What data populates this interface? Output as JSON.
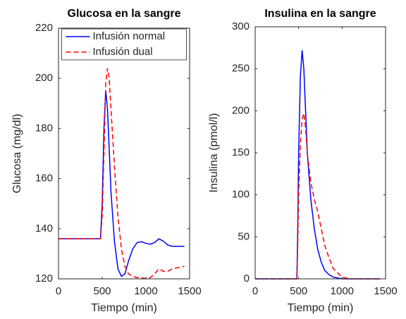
{
  "chart_data": [
    {
      "type": "line",
      "title": "Glucosa en la sangre",
      "xlabel": "Tiempo (min)",
      "ylabel": "Glucosa (mg/dl)",
      "x": [
        0,
        480,
        500,
        520,
        540,
        560,
        580,
        600,
        640,
        680,
        720,
        760,
        800,
        850,
        900,
        950,
        1000,
        1050,
        1100,
        1150,
        1200,
        1250,
        1300,
        1440
      ],
      "series": [
        {
          "name": "Infusión normal",
          "color": "#0000ff",
          "dash": false,
          "values": [
            136,
            136,
            150,
            180,
            195,
            188,
            172,
            155,
            135,
            124,
            121,
            122,
            127,
            132,
            134.5,
            134.8,
            134.2,
            133.8,
            134.5,
            136,
            135,
            133.5,
            133,
            133
          ]
        },
        {
          "name": "Infusión dual",
          "color": "#ff0000",
          "dash": true,
          "values": [
            136,
            136,
            145,
            170,
            198,
            204,
            200,
            188,
            165,
            145,
            132,
            125,
            122,
            121,
            120.5,
            120.5,
            120,
            120.5,
            122,
            124,
            123,
            123,
            124,
            125
          ]
        }
      ],
      "xlim": [
        0,
        1500
      ],
      "xticks": [
        0,
        500,
        1000,
        1500
      ],
      "ylim": [
        120,
        220
      ],
      "yticks": [
        120,
        140,
        160,
        180,
        200,
        220
      ],
      "legend": "north"
    },
    {
      "type": "line",
      "title": "Insulina en la sangre",
      "xlabel": "Tiempo (min)",
      "ylabel": "Insulina (pmol/l)",
      "x": [
        0,
        480,
        490,
        500,
        520,
        540,
        560,
        580,
        600,
        640,
        680,
        720,
        760,
        800,
        850,
        900,
        1000,
        1100,
        1440
      ],
      "series": [
        {
          "color": "#0000ff",
          "dash": false,
          "values": [
            0,
            0,
            60,
            150,
            240,
            272,
            250,
            200,
            150,
            95,
            60,
            35,
            20,
            10,
            5,
            2,
            0,
            0,
            0
          ]
        },
        {
          "color": "#ff0000",
          "dash": true,
          "values": [
            0,
            0,
            40,
            100,
            160,
            190,
            197,
            180,
            150,
            115,
            95,
            80,
            60,
            40,
            25,
            12,
            2,
            0,
            0
          ]
        }
      ],
      "xlim": [
        0,
        1500
      ],
      "xticks": [
        0,
        500,
        1000,
        1500
      ],
      "ylim": [
        0,
        300
      ],
      "yticks": [
        0,
        50,
        100,
        150,
        200,
        250,
        300
      ]
    }
  ]
}
